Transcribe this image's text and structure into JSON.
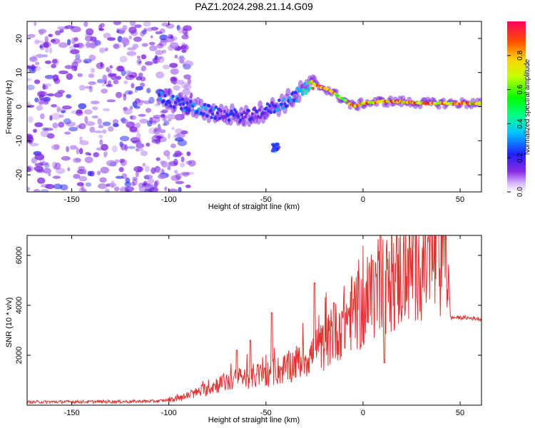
{
  "chart_data": [
    {
      "type": "heatmap",
      "title": "PAZ1.2024.298.21.14.G09",
      "xlabel": "Height of straight line (km)",
      "ylabel": "Frequency (Hz)",
      "xlim": [
        -173,
        61
      ],
      "ylim": [
        -25,
        25
      ],
      "x_ticks": [
        -150,
        -100,
        -50,
        0,
        50
      ],
      "x_tick_labels": [
        "-150",
        "-100",
        "-50",
        "0",
        "50"
      ],
      "y_ticks": [
        -20,
        -10,
        0,
        10,
        20
      ],
      "y_tick_labels": [
        "-20",
        "-10",
        "0",
        "10",
        "20"
      ],
      "colorbar": {
        "label": "Normalized spectral amplitude",
        "range": [
          0,
          1
        ],
        "ticks": [
          0.0,
          0.2,
          0.4,
          0.6,
          0.8
        ],
        "tick_labels": [
          "0.0",
          "0.2",
          "0.4",
          "0.6",
          "0.8"
        ],
        "colormap": "rainbow (violet-blue-cyan-green-yellow-red)"
      },
      "ridge": {
        "description": "dominant frequency track",
        "x": [
          -105,
          -90,
          -75,
          -60,
          -45,
          -35,
          -28,
          -25,
          -18,
          -10,
          -5,
          0,
          10,
          20,
          30,
          45,
          61
        ],
        "y": [
          3,
          0,
          -2,
          -3,
          0,
          3,
          6,
          6.5,
          5,
          2,
          0,
          1,
          1.5,
          1.5,
          1,
          1,
          1
        ],
        "peak_amplitude": [
          0.3,
          0.35,
          0.3,
          0.25,
          0.3,
          0.35,
          0.55,
          0.9,
          0.85,
          0.75,
          0.9,
          0.95,
          0.95,
          0.9,
          0.95,
          0.95,
          0.95
        ]
      },
      "grid": false
    },
    {
      "type": "line",
      "xlabel": "Height of straight line (km)",
      "ylabel": "SNR (10 * v/v)",
      "xlim": [
        -173,
        61
      ],
      "ylim": [
        0,
        6800
      ],
      "x_ticks": [
        -150,
        -100,
        -50,
        0,
        50
      ],
      "x_tick_labels": [
        "-150",
        "-100",
        "-50",
        "0",
        "50"
      ],
      "y_ticks": [
        2000,
        4000,
        6000
      ],
      "y_tick_labels": [
        "2000",
        "4000",
        "6000"
      ],
      "series": [
        {
          "color": "#e53030",
          "x": [
            -173,
            -150,
            -120,
            -105,
            -95,
            -85,
            -75,
            -65,
            -58,
            -50,
            -45,
            -40,
            -35,
            -30,
            -25,
            -20,
            -15,
            -10,
            -5,
            0,
            5,
            8,
            10,
            12,
            15,
            20,
            25,
            30,
            35,
            40,
            44,
            45,
            50,
            55,
            61
          ],
          "y": [
            120,
            130,
            140,
            160,
            250,
            500,
            800,
            1000,
            1100,
            1200,
            1300,
            1400,
            1600,
            1800,
            2000,
            2300,
            2700,
            3200,
            3600,
            3600,
            4200,
            4800,
            5000,
            4600,
            4800,
            5000,
            5300,
            5500,
            5500,
            5550,
            5600,
            3500,
            3500,
            3480,
            3450
          ],
          "spikes": [
            {
              "x": -65,
              "y": 2200
            },
            {
              "x": -58,
              "y": 2600
            },
            {
              "x": -47,
              "y": 3700
            },
            {
              "x": -25,
              "y": 4900
            },
            {
              "x": -15,
              "y": 4100
            },
            {
              "x": 5,
              "y": 5800
            },
            {
              "x": 9,
              "y": 6800
            },
            {
              "x": 11,
              "y": 1700
            }
          ]
        }
      ],
      "grid": false
    }
  ]
}
